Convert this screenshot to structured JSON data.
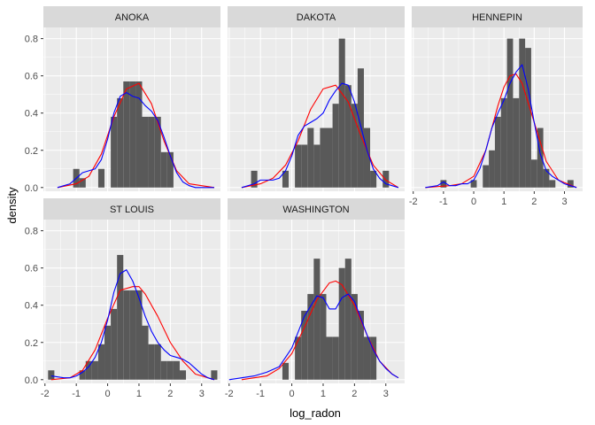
{
  "chart_data": {
    "type": "histogram",
    "xlabel": "log_radon",
    "ylabel": "density",
    "xlim": [
      -2.05,
      3.6
    ],
    "ylim": [
      -0.02,
      0.86
    ],
    "x_ticks": [
      -2,
      -1,
      0,
      1,
      2,
      3
    ],
    "y_ticks": [
      0.0,
      0.2,
      0.4,
      0.6,
      0.8
    ],
    "x_tick_labels": [
      "-2",
      "-1",
      "0",
      "1",
      "2",
      "3"
    ],
    "y_tick_labels": [
      "0.0",
      "0.2",
      "0.4",
      "0.6",
      "0.8"
    ],
    "grid": true,
    "bin_width": 0.2,
    "colors": {
      "panel_background": "#ebebeb",
      "strip_background": "#d9d9d9",
      "grid_major": "#ffffff",
      "bars": "#595959",
      "blue_density": "#0000ff",
      "red_density": "#ff0000",
      "tick": "#333333"
    },
    "panels": [
      {
        "label": "ANOKA",
        "bars": [
          {
            "x": -1.0,
            "density": 0.1
          },
          {
            "x": -0.8,
            "density": 0.05
          },
          {
            "x": -0.2,
            "density": 0.1
          },
          {
            "x": 0.2,
            "density": 0.38
          },
          {
            "x": 0.4,
            "density": 0.48
          },
          {
            "x": 0.6,
            "density": 0.57
          },
          {
            "x": 0.8,
            "density": 0.57
          },
          {
            "x": 1.0,
            "density": 0.57
          },
          {
            "x": 1.2,
            "density": 0.38
          },
          {
            "x": 1.4,
            "density": 0.38
          },
          {
            "x": 1.6,
            "density": 0.38
          },
          {
            "x": 1.8,
            "density": 0.19
          },
          {
            "x": 2.0,
            "density": 0.19
          }
        ],
        "blue_density": {
          "x": [
            -1.6,
            -1.2,
            -1.0,
            -0.8,
            -0.6,
            -0.4,
            -0.2,
            0.0,
            0.2,
            0.4,
            0.6,
            0.8,
            1.0,
            1.2,
            1.4,
            1.6,
            1.8,
            2.0,
            2.2,
            2.4,
            2.6,
            2.8,
            3.0,
            3.4
          ],
          "y": [
            0.0,
            0.02,
            0.05,
            0.08,
            0.09,
            0.1,
            0.15,
            0.26,
            0.4,
            0.49,
            0.51,
            0.49,
            0.48,
            0.44,
            0.41,
            0.36,
            0.27,
            0.17,
            0.08,
            0.03,
            0.01,
            0.0,
            0.0,
            0.0
          ]
        },
        "red_density": {
          "x": [
            -1.6,
            -1.0,
            -0.6,
            -0.2,
            0.2,
            0.6,
            1.0,
            1.4,
            1.8,
            2.2,
            2.6,
            3.4
          ],
          "y": [
            0.0,
            0.02,
            0.06,
            0.18,
            0.38,
            0.53,
            0.56,
            0.45,
            0.25,
            0.09,
            0.02,
            0.0
          ]
        }
      },
      {
        "label": "DAKOTA",
        "bars": [
          {
            "x": -1.2,
            "density": 0.09
          },
          {
            "x": -0.2,
            "density": 0.09
          },
          {
            "x": 0.2,
            "density": 0.23
          },
          {
            "x": 0.4,
            "density": 0.23
          },
          {
            "x": 0.6,
            "density": 0.32
          },
          {
            "x": 0.8,
            "density": 0.23
          },
          {
            "x": 1.0,
            "density": 0.32
          },
          {
            "x": 1.2,
            "density": 0.32
          },
          {
            "x": 1.4,
            "density": 0.45
          },
          {
            "x": 1.6,
            "density": 0.8
          },
          {
            "x": 1.8,
            "density": 0.55
          },
          {
            "x": 2.0,
            "density": 0.45
          },
          {
            "x": 2.2,
            "density": 0.64
          },
          {
            "x": 2.4,
            "density": 0.32
          },
          {
            "x": 2.6,
            "density": 0.09
          },
          {
            "x": 3.0,
            "density": 0.09
          }
        ],
        "blue_density": {
          "x": [
            -1.6,
            -1.2,
            -1.0,
            -0.8,
            -0.6,
            -0.4,
            -0.2,
            0.0,
            0.2,
            0.4,
            0.6,
            0.8,
            1.0,
            1.2,
            1.4,
            1.6,
            1.8,
            2.0,
            2.2,
            2.4,
            2.6,
            2.8,
            3.0,
            3.2,
            3.4
          ],
          "y": [
            0.0,
            0.02,
            0.04,
            0.04,
            0.04,
            0.05,
            0.09,
            0.17,
            0.28,
            0.33,
            0.35,
            0.37,
            0.4,
            0.47,
            0.52,
            0.56,
            0.55,
            0.46,
            0.33,
            0.2,
            0.1,
            0.05,
            0.02,
            0.01,
            0.0
          ]
        },
        "red_density": {
          "x": [
            -1.6,
            -1.0,
            -0.6,
            -0.2,
            0.2,
            0.6,
            1.0,
            1.4,
            1.8,
            2.2,
            2.6,
            3.0,
            3.4
          ],
          "y": [
            0.0,
            0.02,
            0.05,
            0.12,
            0.25,
            0.42,
            0.53,
            0.55,
            0.46,
            0.28,
            0.12,
            0.04,
            0.0
          ]
        }
      },
      {
        "label": "HENNEPIN",
        "bars": [
          {
            "x": -1.0,
            "density": 0.04
          },
          {
            "x": 0.0,
            "density": 0.04
          },
          {
            "x": 0.4,
            "density": 0.12
          },
          {
            "x": 0.6,
            "density": 0.2
          },
          {
            "x": 0.8,
            "density": 0.38
          },
          {
            "x": 1.0,
            "density": 0.48
          },
          {
            "x": 1.2,
            "density": 0.8
          },
          {
            "x": 1.4,
            "density": 0.48
          },
          {
            "x": 1.6,
            "density": 0.8
          },
          {
            "x": 1.8,
            "density": 0.75
          },
          {
            "x": 2.0,
            "density": 0.15
          },
          {
            "x": 2.2,
            "density": 0.32
          },
          {
            "x": 2.4,
            "density": 0.1
          },
          {
            "x": 2.6,
            "density": 0.04
          },
          {
            "x": 3.2,
            "density": 0.04
          }
        ],
        "blue_density": {
          "x": [
            -1.6,
            -1.2,
            -1.0,
            -0.8,
            -0.6,
            -0.4,
            -0.2,
            0.0,
            0.2,
            0.4,
            0.6,
            0.8,
            1.0,
            1.2,
            1.4,
            1.6,
            1.8,
            2.0,
            2.2,
            2.4,
            2.6,
            2.8,
            3.0,
            3.2,
            3.4
          ],
          "y": [
            0.0,
            0.01,
            0.03,
            0.01,
            0.01,
            0.02,
            0.02,
            0.04,
            0.1,
            0.2,
            0.32,
            0.4,
            0.47,
            0.56,
            0.62,
            0.66,
            0.53,
            0.35,
            0.18,
            0.09,
            0.06,
            0.04,
            0.02,
            0.01,
            0.0
          ]
        },
        "red_density": {
          "x": [
            -1.6,
            -0.8,
            -0.4,
            0.0,
            0.4,
            0.8,
            1.0,
            1.2,
            1.4,
            1.6,
            2.0,
            2.4,
            2.8,
            3.4
          ],
          "y": [
            0.0,
            0.01,
            0.02,
            0.06,
            0.2,
            0.44,
            0.54,
            0.6,
            0.61,
            0.56,
            0.35,
            0.14,
            0.04,
            0.0
          ]
        }
      },
      {
        "label": "ST LOUIS",
        "bars": [
          {
            "x": -1.8,
            "density": 0.05
          },
          {
            "x": -0.8,
            "density": 0.05
          },
          {
            "x": -0.6,
            "density": 0.1
          },
          {
            "x": -0.4,
            "density": 0.1
          },
          {
            "x": -0.2,
            "density": 0.19
          },
          {
            "x": 0.0,
            "density": 0.29
          },
          {
            "x": 0.2,
            "density": 0.38
          },
          {
            "x": 0.4,
            "density": 0.67
          },
          {
            "x": 0.6,
            "density": 0.48
          },
          {
            "x": 0.8,
            "density": 0.48
          },
          {
            "x": 1.0,
            "density": 0.48
          },
          {
            "x": 1.2,
            "density": 0.29
          },
          {
            "x": 1.4,
            "density": 0.19
          },
          {
            "x": 1.6,
            "density": 0.19
          },
          {
            "x": 1.8,
            "density": 0.1
          },
          {
            "x": 2.0,
            "density": 0.1
          },
          {
            "x": 2.2,
            "density": 0.1
          },
          {
            "x": 2.4,
            "density": 0.05
          },
          {
            "x": 3.4,
            "density": 0.05
          }
        ],
        "blue_density": {
          "x": [
            -1.8,
            -1.4,
            -1.2,
            -1.0,
            -0.8,
            -0.6,
            -0.4,
            -0.2,
            0.0,
            0.2,
            0.4,
            0.6,
            0.8,
            1.0,
            1.2,
            1.4,
            1.6,
            1.8,
            2.0,
            2.2,
            2.4,
            2.6,
            2.8,
            3.0,
            3.2,
            3.4
          ],
          "y": [
            0.02,
            0.01,
            0.01,
            0.02,
            0.04,
            0.07,
            0.12,
            0.2,
            0.32,
            0.47,
            0.57,
            0.59,
            0.53,
            0.44,
            0.34,
            0.26,
            0.2,
            0.16,
            0.13,
            0.12,
            0.11,
            0.09,
            0.06,
            0.03,
            0.01,
            0.0
          ]
        },
        "red_density": {
          "x": [
            -1.8,
            -1.2,
            -0.8,
            -0.4,
            0.0,
            0.4,
            0.8,
            1.0,
            1.2,
            1.6,
            2.0,
            2.4,
            2.8,
            3.4
          ],
          "y": [
            0.0,
            0.01,
            0.05,
            0.16,
            0.33,
            0.48,
            0.5,
            0.5,
            0.46,
            0.34,
            0.2,
            0.1,
            0.03,
            0.0
          ]
        }
      },
      {
        "label": "WASHINGTON",
        "bars": [
          {
            "x": -0.2,
            "density": 0.09
          },
          {
            "x": 0.2,
            "density": 0.23
          },
          {
            "x": 0.4,
            "density": 0.37
          },
          {
            "x": 0.6,
            "density": 0.46
          },
          {
            "x": 0.8,
            "density": 0.65
          },
          {
            "x": 1.0,
            "density": 0.46
          },
          {
            "x": 1.2,
            "density": 0.23
          },
          {
            "x": 1.4,
            "density": 0.23
          },
          {
            "x": 1.6,
            "density": 0.6
          },
          {
            "x": 1.8,
            "density": 0.65
          },
          {
            "x": 2.0,
            "density": 0.46
          },
          {
            "x": 2.2,
            "density": 0.37
          },
          {
            "x": 2.4,
            "density": 0.23
          },
          {
            "x": 2.6,
            "density": 0.23
          }
        ],
        "blue_density": {
          "x": [
            -2.0,
            -1.6,
            -1.2,
            -0.8,
            -0.4,
            0.0,
            0.4,
            0.8,
            1.0,
            1.2,
            1.4,
            1.6,
            1.8,
            2.0,
            2.2,
            2.4,
            2.6,
            2.8,
            3.0,
            3.2,
            3.4
          ],
          "y": [
            0.0,
            0.01,
            0.02,
            0.04,
            0.07,
            0.17,
            0.34,
            0.45,
            0.44,
            0.38,
            0.38,
            0.44,
            0.46,
            0.42,
            0.33,
            0.24,
            0.16,
            0.1,
            0.06,
            0.03,
            0.01
          ]
        },
        "red_density": {
          "x": [
            -1.6,
            -1.2,
            -0.8,
            -0.4,
            0.0,
            0.4,
            0.8,
            1.2,
            1.4,
            1.6,
            2.0,
            2.4,
            2.8,
            3.2,
            3.4
          ],
          "y": [
            0.0,
            0.01,
            0.02,
            0.06,
            0.14,
            0.28,
            0.43,
            0.52,
            0.53,
            0.51,
            0.4,
            0.24,
            0.1,
            0.03,
            0.01
          ]
        }
      }
    ]
  }
}
